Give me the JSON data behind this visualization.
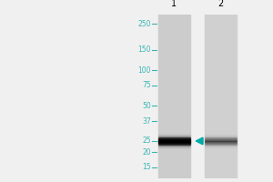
{
  "bg_color": "#d8d8d8",
  "lane_bg_color": "#c8c8c8",
  "white_bg": "#f0f0f0",
  "marker_color": "#3ab5b5",
  "marker_labels": [
    "250",
    "150",
    "100",
    "75",
    "50",
    "37",
    "25",
    "20",
    "15"
  ],
  "marker_positions": [
    250,
    150,
    100,
    75,
    50,
    37,
    25,
    20,
    15
  ],
  "lane_labels": [
    "1",
    "2"
  ],
  "band1_kda": 25,
  "band2_kda": 25,
  "band1_intensity": 0.92,
  "band2_intensity": 0.25,
  "arrow_kda": 25,
  "arrow_color": "#00aaaa",
  "fig_width": 3.0,
  "fig_height": 2.0,
  "dpi": 100
}
